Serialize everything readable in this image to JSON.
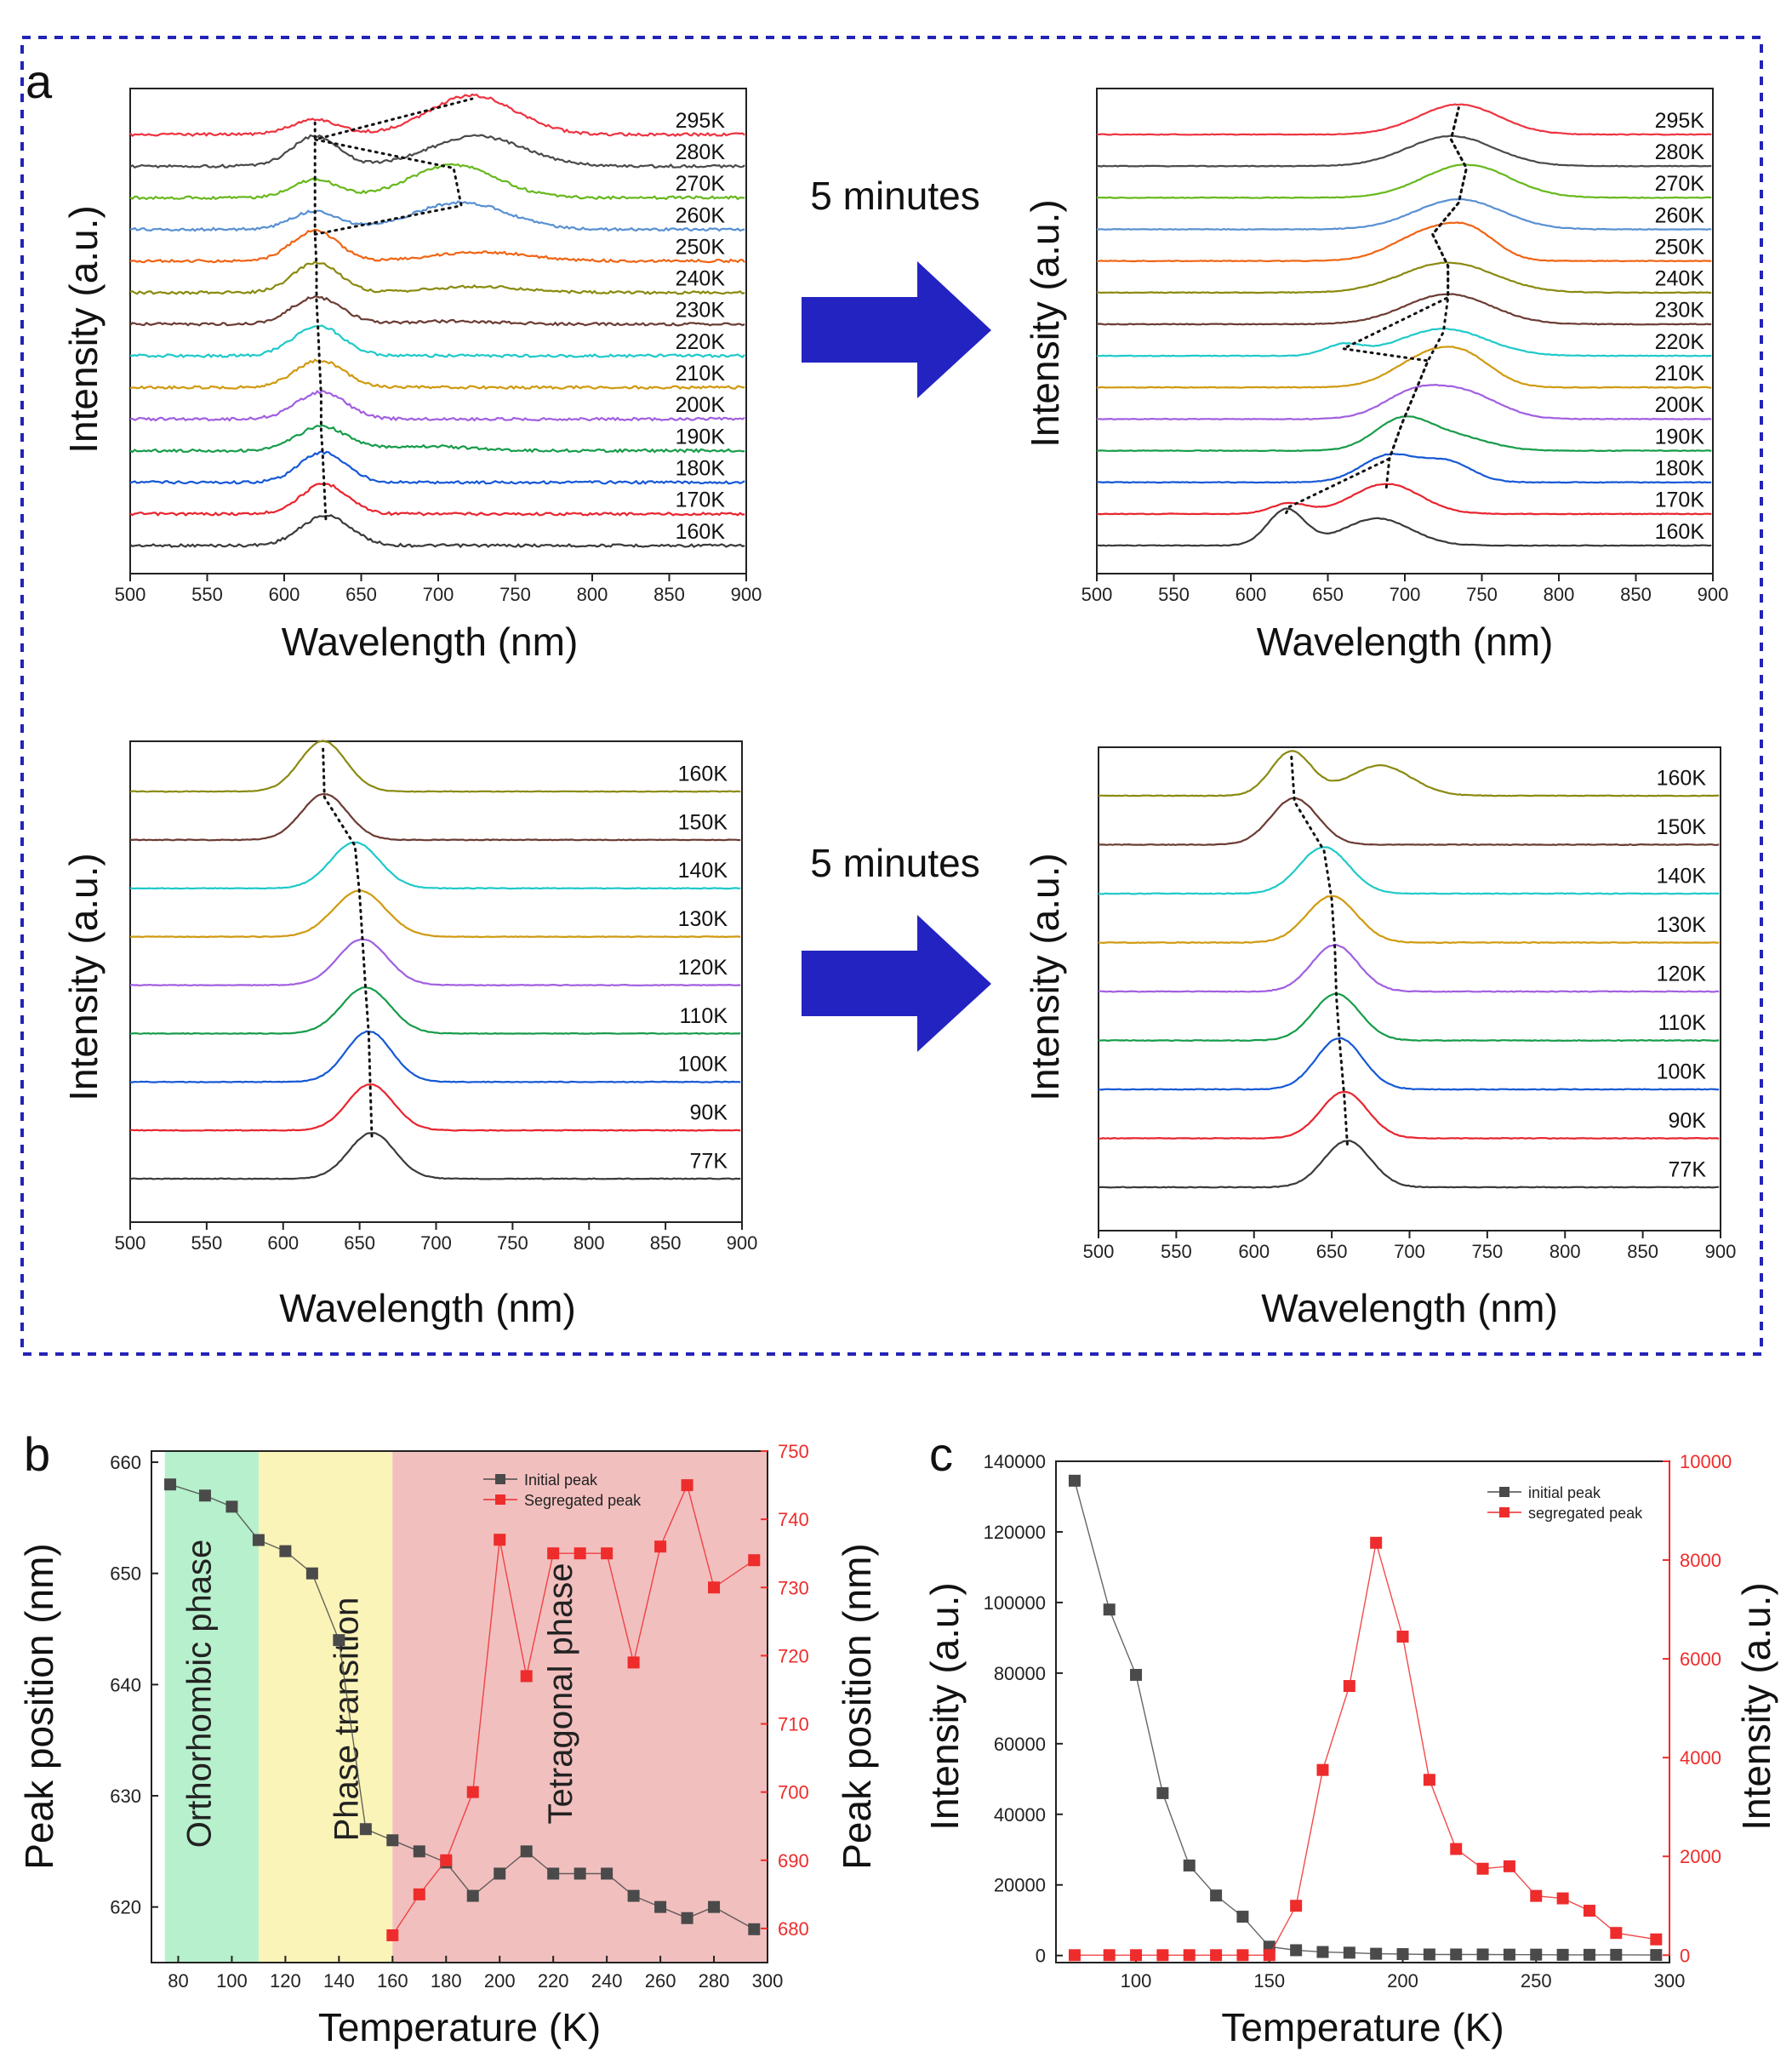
{
  "panel_labels": {
    "a": "a",
    "b": "b",
    "c": "c"
  },
  "colors": {
    "frame": "#2323b8",
    "arrow": "#2323c2",
    "curve_colors": [
      "#3a3a3a",
      "#e8252f",
      "#1558d6",
      "#179c4a",
      "#a15fe0",
      "#d09a10",
      "#1fc9c9",
      "#6b3b33",
      "#8a8a10",
      "#f06414",
      "#5890d2",
      "#67b81d",
      "#4a4a4a",
      "#ee3340"
    ],
    "green_band": "#b7f0cc",
    "yellow_band": "#fbf4b8",
    "red_band": "#f2bfbf",
    "initial_series": "#4a4a4a",
    "segregated_series": "#ee2c2c"
  },
  "arrows": {
    "top_label": "5 minutes",
    "bottom_label": "5 minutes"
  },
  "chart_data": [
    {
      "id": "a1",
      "type": "line",
      "title": "",
      "xlabel": "Wavelength (nm)",
      "ylabel": "Intensity (a.u.)",
      "xlim": [
        500,
        900
      ],
      "xticks": [
        "500",
        "550",
        "600",
        "650",
        "700",
        "750",
        "800",
        "850",
        "900"
      ],
      "series": [
        {
          "name": "160K",
          "peaks": [
            [
              627,
              16,
              1.0
            ]
          ]
        },
        {
          "name": "170K",
          "peaks": [
            [
              626,
              15,
              1.0
            ]
          ]
        },
        {
          "name": "180K",
          "peaks": [
            [
              625,
              15,
              1.0
            ]
          ]
        },
        {
          "name": "190K",
          "peaks": [
            [
              624,
              16,
              0.8
            ],
            [
              690,
              30,
              0.15
            ]
          ]
        },
        {
          "name": "200K",
          "peaks": [
            [
              624,
              16,
              0.9
            ]
          ]
        },
        {
          "name": "210K",
          "peaks": [
            [
              623,
              16,
              0.9
            ]
          ]
        },
        {
          "name": "220K",
          "peaks": [
            [
              622,
              16,
              1.0
            ]
          ]
        },
        {
          "name": "230K",
          "peaks": [
            [
              621,
              16,
              0.9
            ],
            [
              710,
              30,
              0.1
            ]
          ]
        },
        {
          "name": "240K",
          "peaks": [
            [
              621,
              15,
              1.0
            ],
            [
              725,
              30,
              0.2
            ]
          ]
        },
        {
          "name": "250K",
          "peaks": [
            [
              620,
              15,
              1.0
            ],
            [
              728,
              30,
              0.3
            ]
          ]
        },
        {
          "name": "260K",
          "peaks": [
            [
              620,
              15,
              0.6
            ],
            [
              715,
              30,
              0.9
            ]
          ]
        },
        {
          "name": "270K",
          "peaks": [
            [
              620,
              15,
              0.6
            ],
            [
              710,
              28,
              1.1
            ]
          ]
        },
        {
          "name": "280K",
          "peaks": [
            [
              620,
              15,
              1.0
            ],
            [
              725,
              30,
              1.0
            ]
          ]
        },
        {
          "name": "295K",
          "peaks": [
            [
              620,
              15,
              0.5
            ],
            [
              722,
              28,
              1.3
            ]
          ]
        }
      ]
    },
    {
      "id": "a2",
      "type": "line",
      "title": "",
      "xlabel": "Wavelength (nm)",
      "ylabel": "Intensity (a.u.)",
      "xlim": [
        500,
        900
      ],
      "xticks": [
        "500",
        "550",
        "600",
        "650",
        "700",
        "750",
        "800",
        "850",
        "900"
      ],
      "series": [
        {
          "name": "160K",
          "peaks": [
            [
              623,
              12,
              1.2
            ],
            [
              682,
              22,
              0.9
            ]
          ]
        },
        {
          "name": "170K",
          "peaks": [
            [
              625,
              12,
              0.35
            ],
            [
              688,
              22,
              1.0
            ]
          ]
        },
        {
          "name": "180K",
          "peaks": [
            [
              690,
              18,
              0.9
            ],
            [
              728,
              16,
              0.65
            ]
          ]
        },
        {
          "name": "190K",
          "peaks": [
            [
              698,
              18,
              1.0
            ],
            [
              733,
              22,
              0.45
            ]
          ]
        },
        {
          "name": "200K",
          "peaks": [
            [
              705,
              20,
              0.8
            ],
            [
              740,
              22,
              0.8
            ]
          ]
        },
        {
          "name": "210K",
          "peaks": [
            [
              715,
              22,
              1.0
            ],
            [
              742,
              18,
              0.7
            ]
          ]
        },
        {
          "name": "220K",
          "peaks": [
            [
              660,
              12,
              0.35
            ],
            [
              725,
              28,
              0.9
            ]
          ]
        },
        {
          "name": "230K",
          "peaks": [
            [
              728,
              28,
              1.0
            ]
          ]
        },
        {
          "name": "240K",
          "peaks": [
            [
              728,
              30,
              1.0
            ]
          ]
        },
        {
          "name": "250K",
          "peaks": [
            [
              718,
              24,
              1.0
            ],
            [
              745,
              16,
              0.6
            ]
          ]
        },
        {
          "name": "260K",
          "peaks": [
            [
              735,
              28,
              1.0
            ]
          ]
        },
        {
          "name": "270K",
          "peaks": [
            [
              740,
              28,
              1.1
            ]
          ]
        },
        {
          "name": "280K",
          "peaks": [
            [
              730,
              28,
              1.0
            ]
          ]
        },
        {
          "name": "295K",
          "peaks": [
            [
              735,
              26,
              1.0
            ]
          ]
        }
      ]
    },
    {
      "id": "a3",
      "type": "line",
      "title": "",
      "xlabel": "Wavelength (nm)",
      "ylabel": "Intensity (a.u.)",
      "xlim": [
        500,
        900
      ],
      "xticks": [
        "500",
        "550",
        "600",
        "650",
        "700",
        "750",
        "800",
        "850",
        "900"
      ],
      "series": [
        {
          "name": "77K",
          "peaks": [
            [
              658,
              15,
              1.0
            ]
          ]
        },
        {
          "name": "90K",
          "peaks": [
            [
              657,
              15,
              1.0
            ]
          ]
        },
        {
          "name": "100K",
          "peaks": [
            [
              656,
              15,
              1.1
            ]
          ]
        },
        {
          "name": "110K",
          "peaks": [
            [
              654,
              16,
              1.0
            ]
          ]
        },
        {
          "name": "120K",
          "peaks": [
            [
              652,
              16,
              1.0
            ]
          ]
        },
        {
          "name": "130K",
          "peaks": [
            [
              650,
              17,
              1.0
            ]
          ]
        },
        {
          "name": "140K",
          "peaks": [
            [
              647,
              16,
              1.0
            ]
          ]
        },
        {
          "name": "150K",
          "peaks": [
            [
              627,
              15,
              1.0
            ]
          ]
        },
        {
          "name": "160K",
          "peaks": [
            [
              626,
              15,
              1.1
            ]
          ]
        }
      ]
    },
    {
      "id": "a4",
      "type": "line",
      "title": "",
      "xlabel": "Wavelength (nm)",
      "ylabel": "Intensity (a.u.)",
      "xlim": [
        500,
        900
      ],
      "xticks": [
        "500",
        "550",
        "600",
        "650",
        "700",
        "750",
        "800",
        "850",
        "900"
      ],
      "series": [
        {
          "name": "77K",
          "peaks": [
            [
              660,
              15,
              1.0
            ]
          ]
        },
        {
          "name": "90K",
          "peaks": [
            [
              658,
              15,
              1.0
            ]
          ]
        },
        {
          "name": "100K",
          "peaks": [
            [
              655,
              15,
              1.1
            ]
          ]
        },
        {
          "name": "110K",
          "peaks": [
            [
              653,
              15,
              1.0
            ]
          ]
        },
        {
          "name": "120K",
          "peaks": [
            [
              652,
              15,
              1.0
            ]
          ]
        },
        {
          "name": "130K",
          "peaks": [
            [
              650,
              16,
              1.0
            ]
          ]
        },
        {
          "name": "140K",
          "peaks": [
            [
              645,
              16,
              1.0
            ]
          ]
        },
        {
          "name": "150K",
          "peaks": [
            [
              626,
              15,
              1.0
            ]
          ]
        },
        {
          "name": "160K",
          "peaks": [
            [
              624,
              13,
              0.95
            ],
            [
              681,
              20,
              0.65
            ]
          ]
        }
      ]
    },
    {
      "id": "b",
      "type": "scatter",
      "xlabel": "Temperature (K)",
      "ylabel": "Peak position (nm)",
      "y2label": "Peak position (nm)",
      "xlim": [
        70,
        300
      ],
      "ylim": [
        615,
        661
      ],
      "y2lim": [
        675,
        750
      ],
      "xticks": [
        "80",
        "100",
        "120",
        "140",
        "160",
        "180",
        "200",
        "220",
        "240",
        "260",
        "280",
        "300"
      ],
      "yticks": [
        "620",
        "630",
        "640",
        "650",
        "660"
      ],
      "y2ticks": [
        "680",
        "690",
        "700",
        "710",
        "720",
        "730",
        "740",
        "750"
      ],
      "regions": [
        {
          "label": "Orthorhombic phase",
          "from": 75,
          "to": 110
        },
        {
          "label": "Phase transition",
          "from": 110,
          "to": 160
        },
        {
          "label": "Tetragonal phase",
          "from": 160,
          "to": 300
        }
      ],
      "legend": [
        "Initial peak",
        "Segregated peak"
      ],
      "series": [
        {
          "name": "Initial peak",
          "axis": "left",
          "x": [
            77,
            90,
            100,
            110,
            120,
            130,
            140,
            150,
            160,
            170,
            180,
            190,
            200,
            210,
            220,
            230,
            240,
            250,
            260,
            270,
            280,
            295
          ],
          "y": [
            658,
            657,
            656,
            653,
            652,
            650,
            644,
            627,
            626,
            625,
            624,
            621,
            623,
            625,
            623,
            623,
            623,
            621,
            620,
            619,
            620,
            618
          ]
        },
        {
          "name": "Segregated peak",
          "axis": "right",
          "x": [
            160,
            170,
            180,
            190,
            200,
            210,
            220,
            230,
            240,
            250,
            260,
            270,
            280,
            295
          ],
          "y": [
            679,
            685,
            690,
            700,
            737,
            717,
            735,
            735,
            735,
            719,
            736,
            745,
            730,
            734
          ]
        }
      ]
    },
    {
      "id": "c",
      "type": "scatter",
      "xlabel": "Temperature (K)",
      "ylabel": "Intensity (a.u.)",
      "y2label": "Intensity (a.u.)",
      "xlim": [
        70,
        300
      ],
      "ylim": [
        -2000,
        140000
      ],
      "y2lim": [
        -150,
        10000
      ],
      "xticks": [
        "100",
        "150",
        "200",
        "250",
        "300"
      ],
      "yticks": [
        "0",
        "20000",
        "40000",
        "60000",
        "80000",
        "100000",
        "120000",
        "140000"
      ],
      "y2ticks": [
        "0",
        "2000",
        "4000",
        "6000",
        "8000",
        "10000"
      ],
      "legend": [
        "initial peak",
        "segregated peak"
      ],
      "series": [
        {
          "name": "initial peak",
          "axis": "left",
          "x": [
            77,
            90,
            100,
            110,
            120,
            130,
            140,
            150,
            160,
            170,
            180,
            190,
            200,
            210,
            220,
            230,
            240,
            250,
            260,
            270,
            280,
            295
          ],
          "y": [
            134500,
            98000,
            79500,
            46000,
            25500,
            17000,
            11000,
            2500,
            1500,
            1000,
            800,
            500,
            400,
            300,
            300,
            300,
            250,
            250,
            200,
            200,
            200,
            150
          ]
        },
        {
          "name": "segregated peak",
          "axis": "right",
          "x": [
            77,
            90,
            100,
            110,
            120,
            130,
            140,
            150,
            160,
            170,
            180,
            190,
            200,
            210,
            220,
            230,
            240,
            250,
            260,
            270,
            280,
            295
          ],
          "y": [
            0,
            0,
            0,
            0,
            0,
            0,
            0,
            0,
            1000,
            3750,
            5450,
            8350,
            6450,
            3550,
            2150,
            1750,
            1800,
            1200,
            1150,
            900,
            450,
            320
          ]
        }
      ]
    }
  ]
}
